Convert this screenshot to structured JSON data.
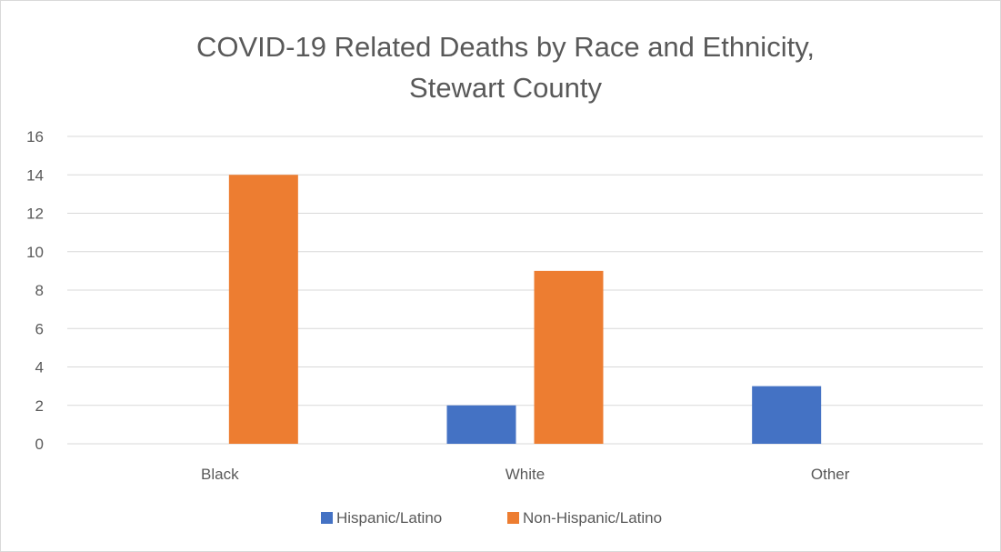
{
  "chart_data": {
    "type": "bar",
    "title_lines": [
      "COVID-19 Related Deaths by Race and Ethnicity,",
      "Stewart County"
    ],
    "categories": [
      "Black",
      "White",
      "Other"
    ],
    "series": [
      {
        "name": "Hispanic/Latino",
        "values": [
          0,
          2,
          3
        ],
        "color": "#4472c4"
      },
      {
        "name": "Non-Hispanic/Latino",
        "values": [
          14,
          9,
          0
        ],
        "color": "#ed7d31"
      }
    ],
    "ylim": [
      0,
      16
    ],
    "yticks": [
      0,
      2,
      4,
      6,
      8,
      10,
      12,
      14,
      16
    ],
    "grid": true,
    "legend_position": "bottom",
    "gridline_color": "#d9d9d9",
    "text_color": "#595959"
  }
}
